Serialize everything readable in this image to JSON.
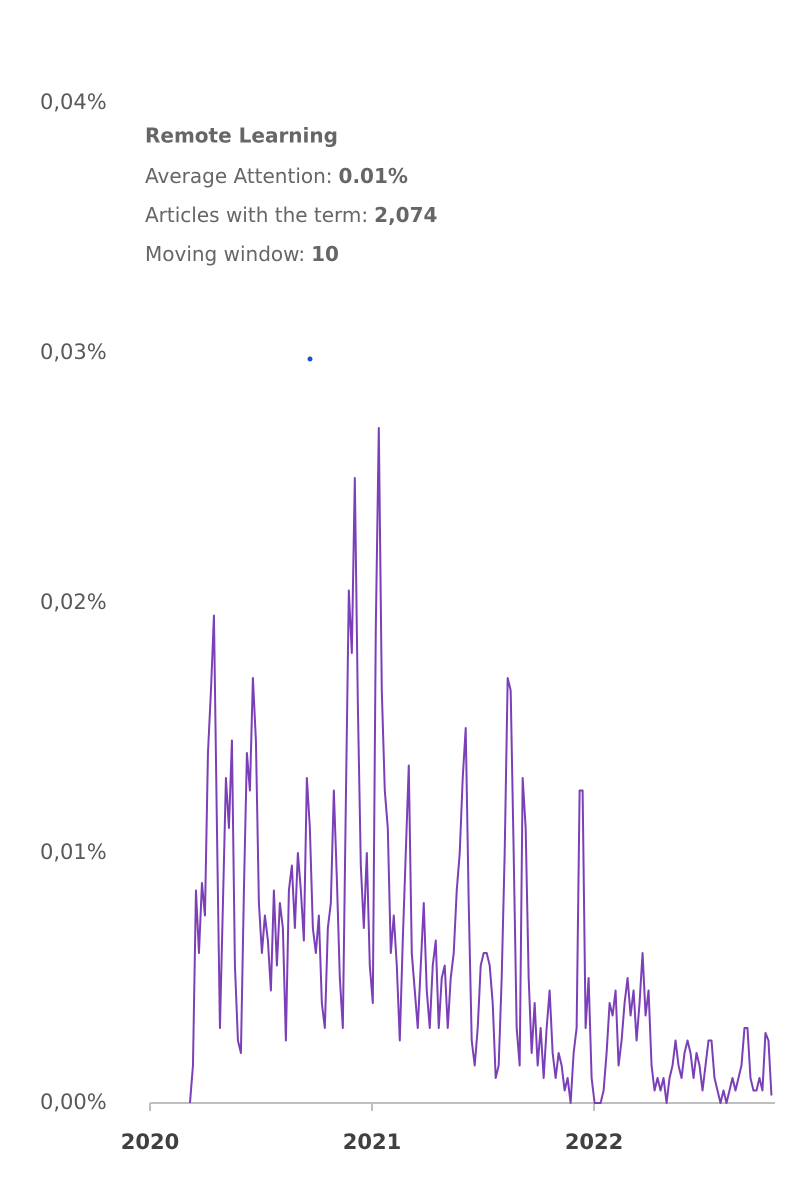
{
  "chart_data": {
    "type": "line",
    "tooltip": {
      "title": "Remote Learning",
      "lines": [
        {
          "label": "Average Attention:",
          "value": "0.01%"
        },
        {
          "label": "Articles with the term:",
          "value": "2,074"
        },
        {
          "label": "Moving window:",
          "value": "10"
        }
      ]
    },
    "color": "#7b3fb8",
    "xlim": [
      2020,
      2022.815
    ],
    "xticks": [
      2020,
      2021,
      2022
    ],
    "ylim": [
      0,
      0.04
    ],
    "yticks": [
      {
        "value": 0,
        "label": "0,00%"
      },
      {
        "value": 0.01,
        "label": "0,01%"
      },
      {
        "value": 0.02,
        "label": "0,02%"
      },
      {
        "value": 0.03,
        "label": "0,03%"
      },
      {
        "value": 0.04,
        "label": "0,04%"
      }
    ],
    "grid": false,
    "x": [
      2020.18,
      2020.1935,
      2020.207,
      2020.2205,
      2020.234,
      2020.2475,
      2020.261,
      2020.2745,
      2020.288,
      2020.3015,
      2020.315,
      2020.3285,
      2020.342,
      2020.3555,
      2020.369,
      2020.3825,
      2020.396,
      2020.4095,
      2020.423,
      2020.4365,
      2020.45,
      2020.4635,
      2020.477,
      2020.4905,
      2020.504,
      2020.5175,
      2020.531,
      2020.5445,
      2020.558,
      2020.5715,
      2020.585,
      2020.5985,
      2020.612,
      2020.6255,
      2020.639,
      2020.6525,
      2020.666,
      2020.6795,
      2020.693,
      2020.7065,
      2020.72,
      2020.7335,
      2020.747,
      2020.7605,
      2020.774,
      2020.7875,
      2020.801,
      2020.8145,
      2020.828,
      2020.8415,
      2020.855,
      2020.8685,
      2020.882,
      2020.8955,
      2020.909,
      2020.9225,
      2020.936,
      2020.9495,
      2020.963,
      2020.9765,
      2020.99,
      2021.0035,
      2021.017,
      2021.0305,
      2021.044,
      2021.0575,
      2021.071,
      2021.0845,
      2021.098,
      2021.1115,
      2021.125,
      2021.1385,
      2021.152,
      2021.1655,
      2021.179,
      2021.1925,
      2021.206,
      2021.2195,
      2021.233,
      2021.2465,
      2021.26,
      2021.2735,
      2021.287,
      2021.3005,
      2021.314,
      2021.3275,
      2021.341,
      2021.3545,
      2021.368,
      2021.3815,
      2021.395,
      2021.4085,
      2021.422,
      2021.4355,
      2021.449,
      2021.4625,
      2021.476,
      2021.4895,
      2021.503,
      2021.5165,
      2021.53,
      2021.5435,
      2021.557,
      2021.5705,
      2021.584,
      2021.5975,
      2021.611,
      2021.6245,
      2021.638,
      2021.6515,
      2021.665,
      2021.6785,
      2021.692,
      2021.7055,
      2021.719,
      2021.7325,
      2021.746,
      2021.7595,
      2021.773,
      2021.7865,
      2021.8,
      2021.8135,
      2021.827,
      2021.8405,
      2021.854,
      2021.8675,
      2021.881,
      2021.8945,
      2021.908,
      2021.9215,
      2021.935,
      2021.9485,
      2021.962,
      2021.9755,
      2021.989,
      2022.0025,
      2022.016,
      2022.0295,
      2022.043,
      2022.0565,
      2022.07,
      2022.0835,
      2022.097,
      2022.1105,
      2022.124,
      2022.1375,
      2022.151,
      2022.1645,
      2022.178,
      2022.1915,
      2022.205,
      2022.2185,
      2022.232,
      2022.2455,
      2022.259,
      2022.2725,
      2022.286,
      2022.2995,
      2022.313,
      2022.3265,
      2022.34,
      2022.3535,
      2022.367,
      2022.3805,
      2022.394,
      2022.4075,
      2022.421,
      2022.4345,
      2022.448,
      2022.4615,
      2022.475,
      2022.4885,
      2022.502,
      2022.5155,
      2022.529,
      2022.5425,
      2022.556,
      2022.5695,
      2022.583,
      2022.5965,
      2022.61,
      2022.6235,
      2022.637,
      2022.6505,
      2022.664,
      2022.6775,
      2022.691,
      2022.7045,
      2022.718,
      2022.7315,
      2022.745,
      2022.7585,
      2022.772,
      2022.7855,
      2022.799
    ],
    "values": [
      0.0,
      0.0015,
      0.0085,
      0.006,
      0.0088,
      0.0075,
      0.014,
      0.0165,
      0.0195,
      0.011,
      0.003,
      0.008,
      0.013,
      0.011,
      0.0145,
      0.0055,
      0.0025,
      0.002,
      0.0085,
      0.014,
      0.0125,
      0.017,
      0.0145,
      0.008,
      0.006,
      0.0075,
      0.0065,
      0.0045,
      0.0085,
      0.0055,
      0.008,
      0.007,
      0.0025,
      0.0085,
      0.0095,
      0.007,
      0.01,
      0.0085,
      0.0065,
      0.013,
      0.011,
      0.007,
      0.006,
      0.0075,
      0.004,
      0.003,
      0.007,
      0.008,
      0.0125,
      0.009,
      0.005,
      0.003,
      0.012,
      0.0205,
      0.018,
      0.025,
      0.016,
      0.0095,
      0.007,
      0.01,
      0.0055,
      0.004,
      0.019,
      0.027,
      0.0165,
      0.0125,
      0.011,
      0.006,
      0.0075,
      0.0055,
      0.0025,
      0.0065,
      0.01,
      0.0135,
      0.006,
      0.0045,
      0.003,
      0.0055,
      0.008,
      0.0045,
      0.003,
      0.0055,
      0.0065,
      0.003,
      0.005,
      0.0055,
      0.003,
      0.005,
      0.006,
      0.0085,
      0.01,
      0.013,
      0.015,
      0.008,
      0.0025,
      0.0015,
      0.003,
      0.0055,
      0.006,
      0.006,
      0.0055,
      0.004,
      0.001,
      0.0015,
      0.005,
      0.01,
      0.017,
      0.0165,
      0.01,
      0.003,
      0.0015,
      0.013,
      0.011,
      0.005,
      0.002,
      0.004,
      0.0015,
      0.003,
      0.001,
      0.003,
      0.0045,
      0.002,
      0.001,
      0.002,
      0.0015,
      0.0005,
      0.001,
      0.0,
      0.002,
      0.003,
      0.0125,
      0.0125,
      0.003,
      0.005,
      0.001,
      0.0,
      0.0,
      0.0,
      0.0005,
      0.002,
      0.004,
      0.0035,
      0.0045,
      0.0015,
      0.0025,
      0.004,
      0.005,
      0.0035,
      0.0045,
      0.0025,
      0.004,
      0.006,
      0.0035,
      0.0045,
      0.0015,
      0.0005,
      0.001,
      0.0005,
      0.001,
      0.0,
      0.001,
      0.0015,
      0.0025,
      0.0015,
      0.001,
      0.002,
      0.0025,
      0.002,
      0.001,
      0.002,
      0.0015,
      0.0005,
      0.0015,
      0.0025,
      0.0025,
      0.001,
      0.0005,
      0.0,
      0.0005,
      0.0,
      0.0005,
      0.001,
      0.0005,
      0.001,
      0.0015,
      0.003,
      0.003,
      0.001,
      0.0005,
      0.0005,
      0.001,
      0.0005,
      0.0028,
      0.0025,
      0.0003
    ]
  }
}
